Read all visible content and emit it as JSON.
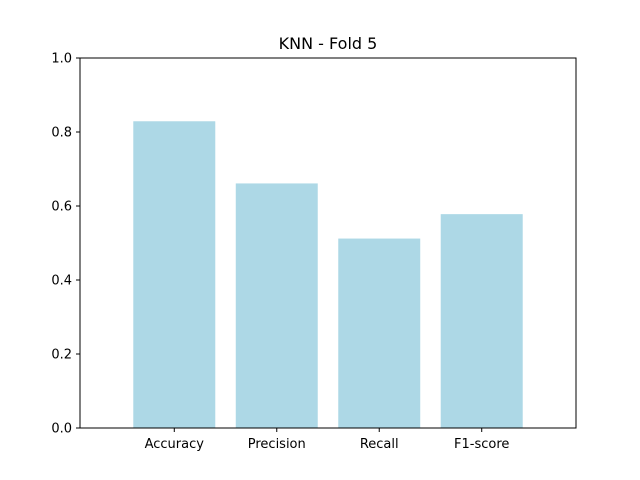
{
  "chart_data": {
    "type": "bar",
    "title": "KNN - Fold 5",
    "xlabel": "",
    "ylabel": "",
    "categories": [
      "Accuracy",
      "Precision",
      "Recall",
      "F1-score"
    ],
    "values": [
      0.829,
      0.661,
      0.512,
      0.578
    ],
    "ylim": [
      0,
      1.0
    ],
    "yticks": [
      0.0,
      0.2,
      0.4,
      0.6,
      0.8,
      1.0
    ],
    "ytick_labels": [
      "0.0",
      "0.2",
      "0.4",
      "0.6",
      "0.8",
      "1.0"
    ],
    "bar_color": "#add8e6",
    "grid": false,
    "legend": "none"
  }
}
